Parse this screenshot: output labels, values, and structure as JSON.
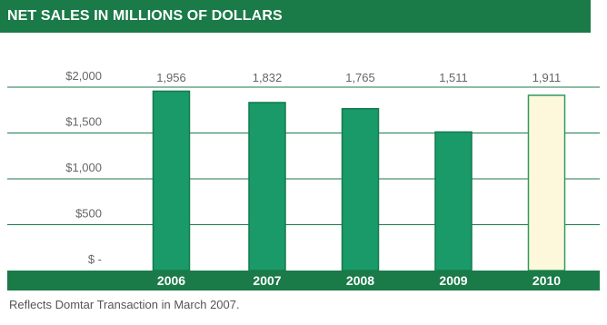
{
  "chart_data": {
    "type": "bar",
    "title": "NET SALES IN MILLIONS OF DOLLARS",
    "categories": [
      "2006",
      "2007",
      "2008",
      "2009",
      "2010"
    ],
    "values": [
      1956,
      1832,
      1765,
      1511,
      1911
    ],
    "value_labels": [
      "1,956",
      "1,832",
      "1,765",
      "1,511",
      "1,911"
    ],
    "y_ticks": [
      {
        "value": 0,
        "label": "$ -"
      },
      {
        "value": 500,
        "label": "$500"
      },
      {
        "value": 1000,
        "label": "$1,000"
      },
      {
        "value": 1500,
        "label": "$1,500"
      },
      {
        "value": 2000,
        "label": "$2,000"
      }
    ],
    "ylim": [
      0,
      2000
    ],
    "grid": true,
    "colors": {
      "bar": "#1a9a68",
      "bar_border": "#137a4f",
      "highlight": "#fdf8dc",
      "highlight_border": "#2e9a5e",
      "axis_band": "#1a7a48",
      "title_band": "#1a7a48",
      "grid": "#1a7a48"
    },
    "highlight_category": "2010"
  },
  "footnote": "Reflects Domtar Transaction in March 2007."
}
